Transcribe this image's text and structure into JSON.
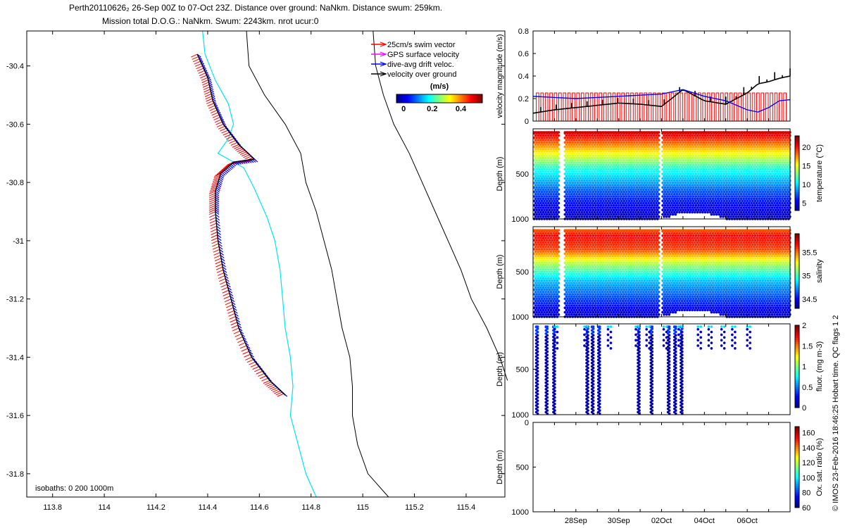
{
  "header": {
    "line1": "Perth20110626₂ 26-Sep 00Z to 07-Oct 23Z. Distance over ground: NaNkm. Distance swum: 259km.",
    "line2": "Mission total D.O.G.: NaNkm. Swum: 2243km. nrot ucur:0"
  },
  "footer_stamp": "© IMOS 23-Feb-2016 18:46:25 Hobart time. QC flags 1  2",
  "chart_data": [
    {
      "type": "map",
      "name": "track-map",
      "xlim": [
        113.7,
        115.55
      ],
      "ylim": [
        -31.88,
        -30.28
      ],
      "xticks": [
        113.8,
        114,
        114.2,
        114.4,
        114.6,
        114.8,
        115,
        115.2,
        115.4
      ],
      "xtick_labels": [
        "113.8",
        "114",
        "114.2",
        "114.4",
        "114.6",
        "114.8",
        "115",
        "115.2",
        "115.4"
      ],
      "yticks": [
        -30.4,
        -30.6,
        -30.8,
        -31,
        -31.2,
        -31.4,
        -31.6,
        -31.8
      ],
      "ytick_labels": [
        "-30.4",
        "-30.6",
        "-30.8",
        "-31",
        "-31.2",
        "-31.4",
        "-31.6",
        "-31.8"
      ],
      "isobath_label": "isobaths: 0   200  1000m",
      "legend": [
        {
          "label": "25cm/s swim vector",
          "color": "#ff0000"
        },
        {
          "label": "GPS surface velocity",
          "color": "#ff00ff"
        },
        {
          "label": "dive-avg drift veloc.",
          "color": "#0000ff"
        },
        {
          "label": "velocity over ground",
          "color": "#000000"
        }
      ],
      "colorbar": {
        "title": "(m/s)",
        "ticks": [
          "0",
          "0.2",
          "0.4"
        ],
        "range": [
          -0.05,
          0.55
        ]
      },
      "track": [
        [
          114.36,
          -30.36
        ],
        [
          114.4,
          -30.44
        ],
        [
          114.42,
          -30.52
        ],
        [
          114.46,
          -30.6
        ],
        [
          114.52,
          -30.67
        ],
        [
          114.58,
          -30.72
        ],
        [
          114.5,
          -30.73
        ],
        [
          114.45,
          -30.77
        ],
        [
          114.43,
          -30.83
        ],
        [
          114.43,
          -30.9
        ],
        [
          114.44,
          -31.0
        ],
        [
          114.46,
          -31.1
        ],
        [
          114.49,
          -31.2
        ],
        [
          114.52,
          -31.3
        ],
        [
          114.57,
          -31.4
        ],
        [
          114.64,
          -31.48
        ],
        [
          114.7,
          -31.53
        ]
      ],
      "contour_200m": [
        [
          114.38,
          -30.28
        ],
        [
          114.39,
          -30.36
        ],
        [
          114.43,
          -30.45
        ],
        [
          114.48,
          -30.53
        ],
        [
          114.5,
          -30.6
        ],
        [
          114.48,
          -30.65
        ],
        [
          114.44,
          -30.7
        ],
        [
          114.54,
          -30.75
        ],
        [
          114.58,
          -30.82
        ],
        [
          114.63,
          -30.92
        ],
        [
          114.66,
          -31.0
        ],
        [
          114.68,
          -31.1
        ],
        [
          114.69,
          -31.2
        ],
        [
          114.7,
          -31.3
        ],
        [
          114.72,
          -31.4
        ],
        [
          114.73,
          -31.5
        ],
        [
          114.72,
          -31.6
        ],
        [
          114.75,
          -31.7
        ],
        [
          114.78,
          -31.8
        ],
        [
          114.82,
          -31.88
        ]
      ],
      "contour_1000m": [
        [
          114.55,
          -30.28
        ],
        [
          114.56,
          -30.4
        ],
        [
          114.62,
          -30.5
        ],
        [
          114.7,
          -30.6
        ],
        [
          114.76,
          -30.7
        ],
        [
          114.78,
          -30.8
        ],
        [
          114.82,
          -30.9
        ],
        [
          114.85,
          -31.0
        ],
        [
          114.88,
          -31.1
        ],
        [
          114.9,
          -31.2
        ],
        [
          114.92,
          -31.3
        ],
        [
          114.95,
          -31.4
        ],
        [
          114.96,
          -31.5
        ],
        [
          114.96,
          -31.6
        ],
        [
          114.98,
          -31.7
        ],
        [
          115.02,
          -31.8
        ],
        [
          115.1,
          -31.88
        ]
      ],
      "coastline": [
        [
          115.04,
          -30.28
        ],
        [
          115.05,
          -30.4
        ],
        [
          115.08,
          -30.5
        ],
        [
          115.12,
          -30.6
        ],
        [
          115.18,
          -30.7
        ],
        [
          115.23,
          -30.8
        ],
        [
          115.28,
          -30.9
        ],
        [
          115.33,
          -31.0
        ],
        [
          115.38,
          -31.1
        ],
        [
          115.42,
          -31.2
        ],
        [
          115.48,
          -31.3
        ],
        [
          115.53,
          -31.4
        ],
        [
          115.56,
          -31.48
        ]
      ]
    },
    {
      "type": "line",
      "name": "velocity-magnitude",
      "ylabel": "velocity magnitude (m/s)",
      "ylim": [
        0,
        0.8
      ],
      "yticks": [
        0,
        0.2,
        0.4,
        0.6,
        0.8
      ],
      "ytick_labels": [
        "0",
        "0.2",
        "0.4",
        "0.6",
        "0.8"
      ],
      "xlim_days": [
        0,
        12
      ],
      "series": [
        {
          "name": "swim speed",
          "color": "#ff0000",
          "x": [
            0.2,
            11.8
          ],
          "y": [
            0.25,
            0.25
          ]
        },
        {
          "name": "dive-avg drift",
          "color": "#0000ff",
          "x": [
            0,
            1,
            2,
            3,
            4,
            5,
            6,
            7,
            8,
            9,
            10,
            10.5,
            11,
            11.5,
            12
          ],
          "y": [
            0.22,
            0.21,
            0.2,
            0.21,
            0.22,
            0.23,
            0.24,
            0.28,
            0.22,
            0.18,
            0.1,
            0.08,
            0.12,
            0.18,
            0.19
          ]
        },
        {
          "name": "velocity over ground",
          "color": "#000000",
          "x": [
            0,
            1,
            2,
            3,
            4,
            5,
            6,
            7,
            8,
            9,
            10,
            10.5,
            11,
            11.5,
            12
          ],
          "y": [
            0.07,
            0.1,
            0.12,
            0.14,
            0.16,
            0.15,
            0.13,
            0.28,
            0.18,
            0.15,
            0.25,
            0.33,
            0.35,
            0.38,
            0.4
          ]
        }
      ]
    },
    {
      "type": "scatter",
      "name": "temperature-section",
      "ylabel": "Depth (m)",
      "ylim": [
        1000,
        0
      ],
      "yticks": [
        500,
        1000
      ],
      "ytick_labels": [
        "500",
        "1000"
      ],
      "colorbar": {
        "label": "temperature (°C)",
        "ticks": [
          "5",
          "10",
          "15",
          "20"
        ],
        "range": [
          3,
          23
        ]
      },
      "gaps_days": [
        1.3,
        5.9
      ],
      "profile": [
        [
          0,
          22
        ],
        [
          100,
          20
        ],
        [
          250,
          16
        ],
        [
          450,
          11
        ],
        [
          700,
          7
        ],
        [
          1000,
          4
        ]
      ]
    },
    {
      "type": "scatter",
      "name": "salinity-section",
      "ylabel": "Depth (m)",
      "ylim": [
        1000,
        0
      ],
      "yticks": [
        500,
        1000
      ],
      "ytick_labels": [
        "500",
        "1000"
      ],
      "colorbar": {
        "label": "salinity",
        "ticks": [
          "34.5",
          "35",
          "35.5"
        ],
        "range": [
          34.3,
          35.9
        ]
      },
      "gaps_days": [
        1.3,
        5.9
      ],
      "profile": [
        [
          0,
          35.5
        ],
        [
          100,
          35.7
        ],
        [
          250,
          35.6
        ],
        [
          400,
          35.2
        ],
        [
          600,
          34.8
        ],
        [
          1000,
          34.4
        ]
      ]
    },
    {
      "type": "scatter",
      "name": "fluorescence-section",
      "ylabel": "Depth (m)",
      "ylim": [
        1000,
        0
      ],
      "yticks": [
        500,
        1000
      ],
      "ytick_labels": [
        "500",
        "1000"
      ],
      "colorbar": {
        "label": "fluor. (mg m-3)",
        "ticks": [
          "0",
          "0.5",
          "1",
          "1.5",
          "2"
        ],
        "range": [
          0,
          2
        ]
      },
      "deep_profiles_days": [
        0.15,
        0.6,
        0.95,
        2.5,
        2.75,
        3.05,
        4.9,
        5.5,
        6.3,
        6.6,
        6.9
      ],
      "shallow_casts_days": [
        1.0,
        2.4,
        3.5,
        4.8,
        5.3,
        6.1,
        6.8,
        7.7,
        8.2,
        8.8,
        9.3,
        10.0
      ]
    },
    {
      "type": "scatter",
      "name": "oxygen-section",
      "ylabel": "Depth (m)",
      "ylim": [
        1000,
        0
      ],
      "yticks": [
        0,
        500,
        1000
      ],
      "ytick_labels": [
        "0",
        "500",
        "1000"
      ],
      "colorbar": {
        "label": "Ox. sat. ratio (%)",
        "ticks": [
          "60",
          "80",
          "100",
          "120",
          "140",
          "160"
        ],
        "range": [
          60,
          168
        ]
      },
      "xtick_days": [
        2,
        4,
        6,
        8,
        10
      ],
      "xtick_labels": [
        "28Sep",
        "30Sep",
        "02Oct",
        "04Oct",
        "06Oct"
      ]
    }
  ]
}
